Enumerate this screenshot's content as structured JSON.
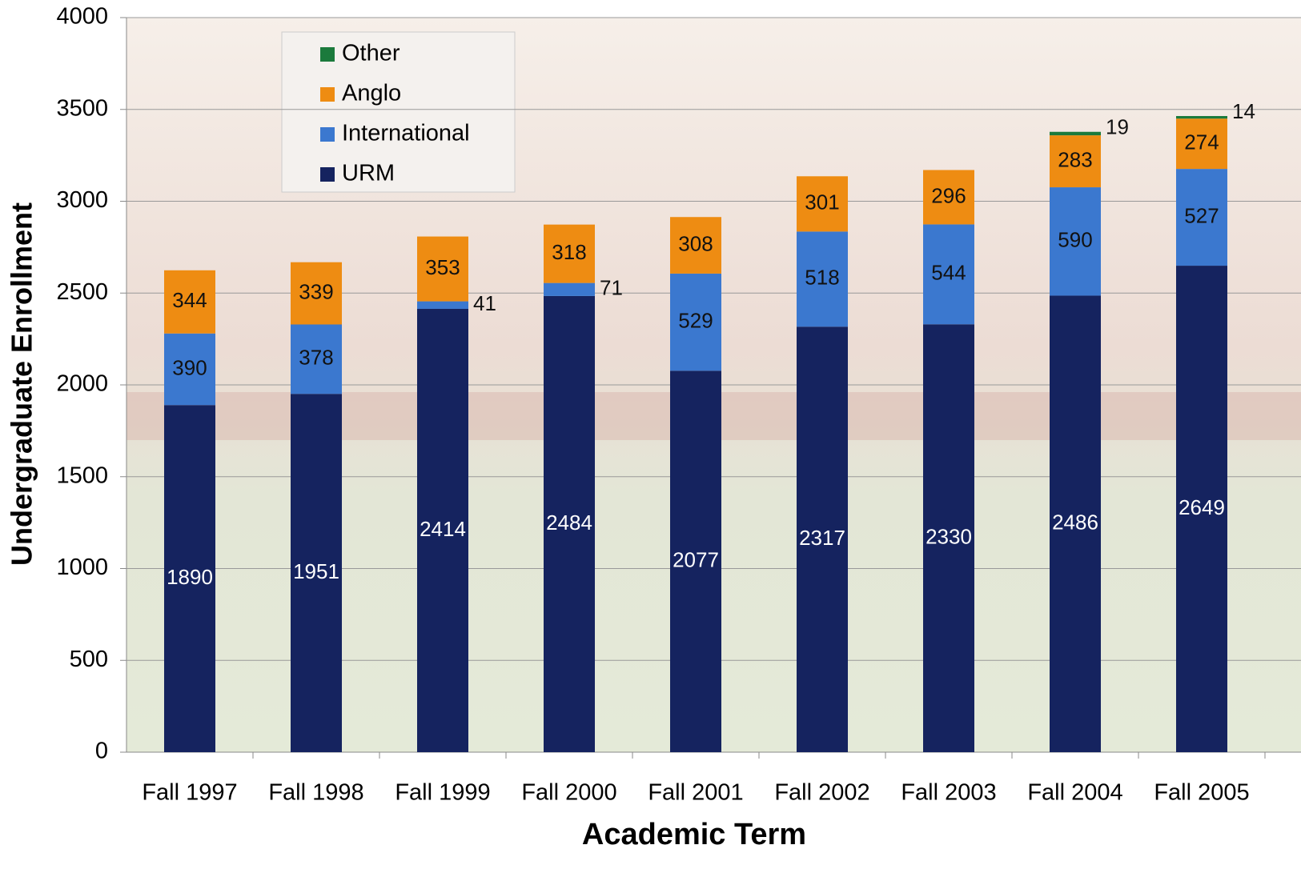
{
  "chart_data": {
    "type": "stacked-bar",
    "x_label": "Academic Term",
    "y_label": "Undergraduate Enrollment",
    "categories": [
      "Fall 1997",
      "Fall 1998",
      "Fall 1999",
      "Fall 2000",
      "Fall 2001",
      "Fall 2002",
      "Fall 2003",
      "Fall 2004",
      "Fall 2005"
    ],
    "series": [
      {
        "name": "URM",
        "color": "#15235f",
        "values": [
          1890,
          1951,
          2414,
          2484,
          2077,
          2317,
          2330,
          2486,
          2649
        ]
      },
      {
        "name": "International",
        "color": "#3b78cf",
        "values": [
          390,
          378,
          41,
          71,
          529,
          518,
          544,
          590,
          527
        ]
      },
      {
        "name": "Anglo",
        "color": "#ee8c12",
        "values": [
          344,
          339,
          353,
          318,
          308,
          301,
          296,
          283,
          274
        ]
      },
      {
        "name": "Other",
        "color": "#1b7a3c",
        "values": [
          null,
          null,
          null,
          null,
          null,
          null,
          null,
          19,
          14
        ]
      }
    ],
    "ylim": [
      0,
      4000
    ],
    "yticks": [
      0,
      500,
      1000,
      1500,
      2000,
      2500,
      3000,
      3500,
      4000
    ],
    "grid": true,
    "legend": "top-left"
  }
}
